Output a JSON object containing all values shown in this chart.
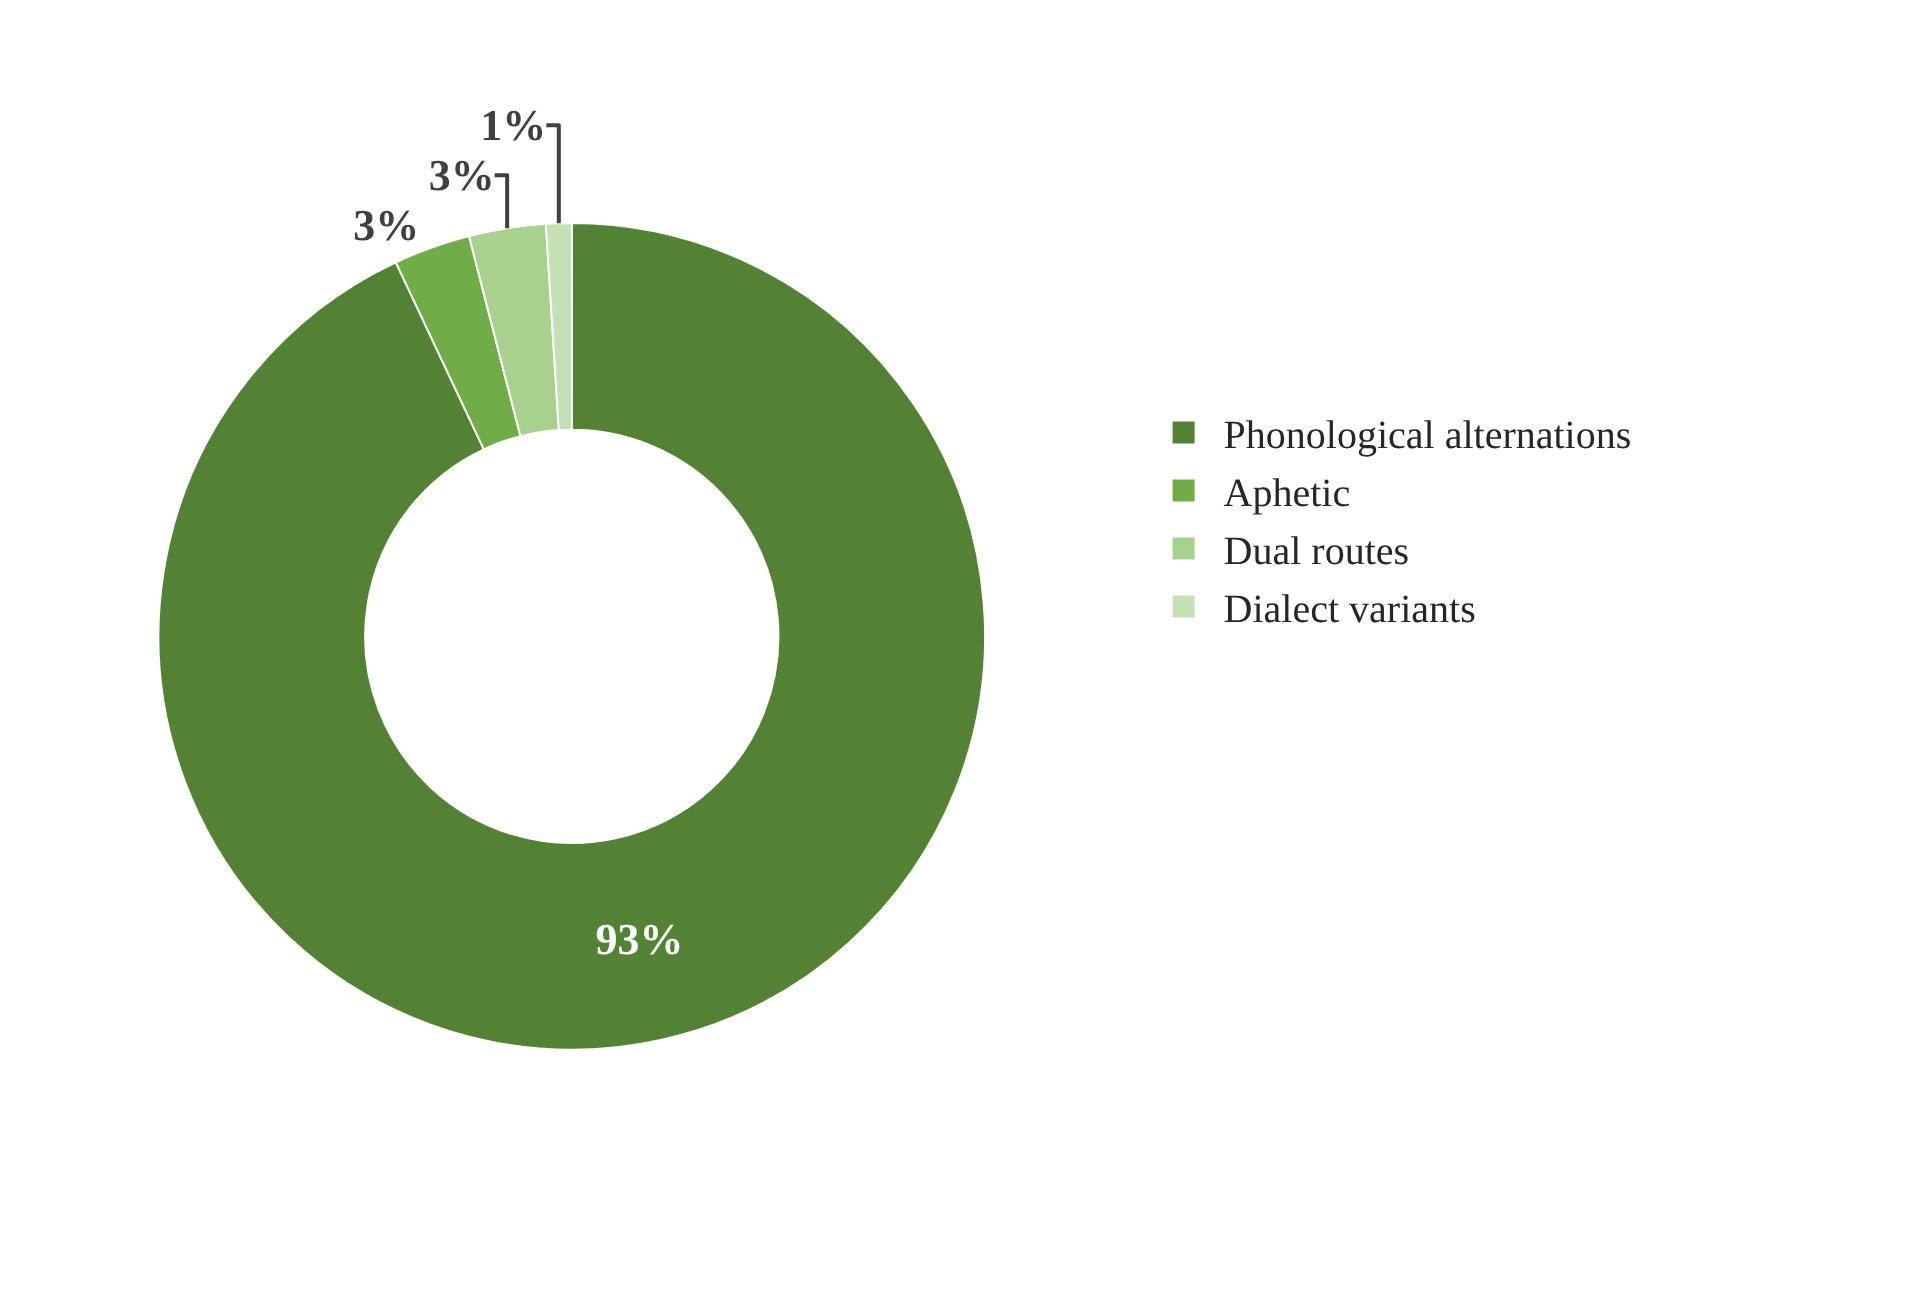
{
  "chart_data": {
    "type": "donut",
    "categories": [
      "Phonological alternations",
      "Aphetic",
      "Dual routes",
      "Dialect variants"
    ],
    "values": [
      93,
      3,
      3,
      1
    ],
    "colors": [
      "#548235",
      "#70ad47",
      "#a9d18e",
      "#c5e0b4"
    ],
    "value_labels": [
      "93%",
      "3%",
      "3%",
      "1%"
    ],
    "legend": "right"
  }
}
